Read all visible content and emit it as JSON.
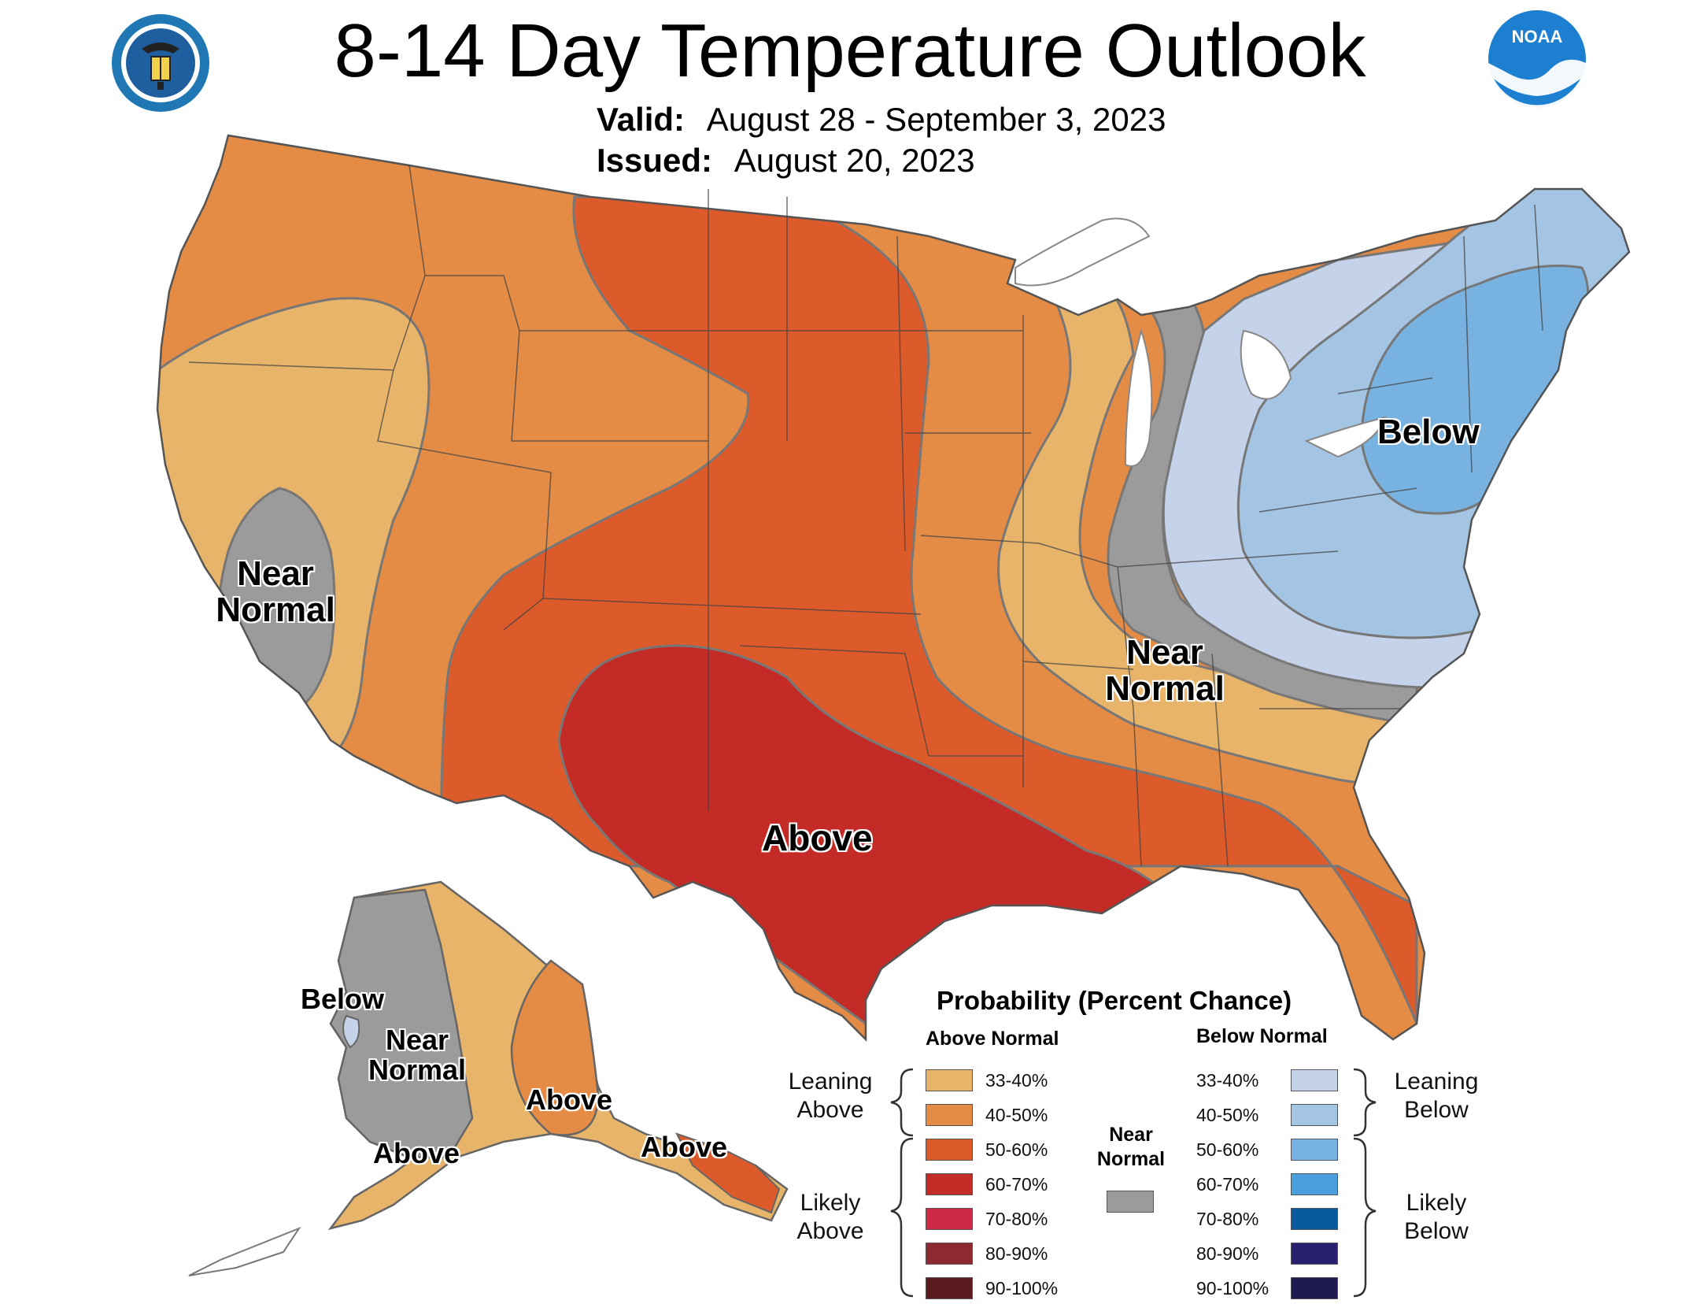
{
  "header": {
    "title": "8-14 Day Temperature Outlook",
    "valid_label": "Valid:",
    "valid_value": "August 28 - September 3, 2023",
    "issued_label": "Issued:",
    "issued_value": "August 20, 2023",
    "left_seal": "department-of-commerce-seal-icon",
    "right_logo": "noaa-logo-icon",
    "noaa_text": "NOAA"
  },
  "map": {
    "labels": {
      "west_near_normal_1": "Near",
      "west_near_normal_2": "Normal",
      "east_near_normal_1": "Near",
      "east_near_normal_2": "Normal",
      "northeast_below": "Below",
      "south_above": "Above",
      "ak_below": "Below",
      "ak_near_normal_1": "Near",
      "ak_near_normal_2": "Normal",
      "ak_above_sw": "Above",
      "ak_above_south": "Above",
      "ak_above_panhandle": "Above"
    }
  },
  "legend": {
    "title": "Probability (Percent Chance)",
    "above_header": "Above Normal",
    "below_header": "Below Normal",
    "near_normal_1": "Near",
    "near_normal_2": "Normal",
    "near_normal_color": "#9b9b9b",
    "leaning_above_1": "Leaning",
    "leaning_above_2": "Above",
    "likely_above_1": "Likely",
    "likely_above_2": "Above",
    "leaning_below_1": "Leaning",
    "leaning_below_2": "Below",
    "likely_below_1": "Likely",
    "likely_below_2": "Below",
    "above": [
      {
        "range": "33-40%",
        "color": "#e8b46a"
      },
      {
        "range": "40-50%",
        "color": "#e48b45"
      },
      {
        "range": "50-60%",
        "color": "#dd5a2b"
      },
      {
        "range": "60-70%",
        "color": "#c42b26"
      },
      {
        "range": "70-80%",
        "color": "#cc2a47"
      },
      {
        "range": "80-90%",
        "color": "#8c2a30"
      },
      {
        "range": "90-100%",
        "color": "#5a1a1e"
      }
    ],
    "below": [
      {
        "range": "33-40%",
        "color": "#c4d2ea"
      },
      {
        "range": "40-50%",
        "color": "#a3c4e2"
      },
      {
        "range": "50-60%",
        "color": "#78b2e0"
      },
      {
        "range": "60-70%",
        "color": "#4aa0dc"
      },
      {
        "range": "70-80%",
        "color": "#0a5aa0"
      },
      {
        "range": "80-90%",
        "color": "#2a2070"
      },
      {
        "range": "90-100%",
        "color": "#1e1a50"
      }
    ]
  }
}
